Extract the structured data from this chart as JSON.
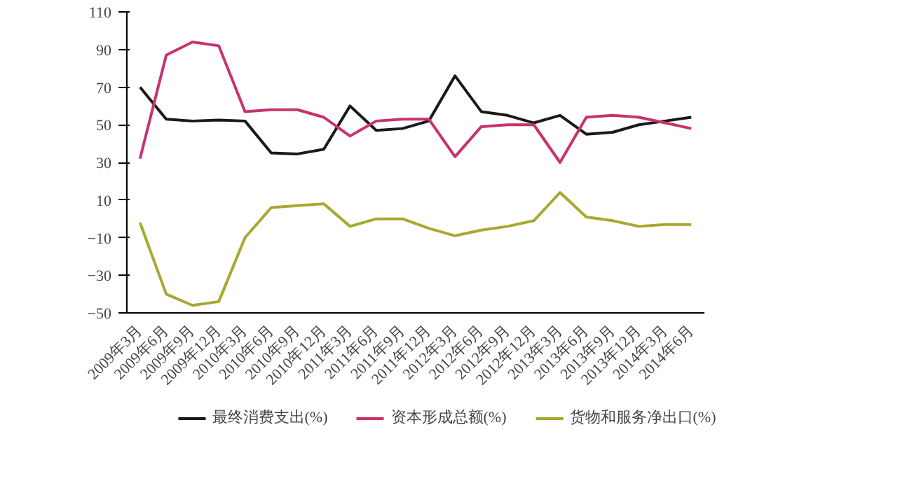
{
  "chart_data": {
    "type": "line",
    "categories": [
      "2009年3月",
      "2009年6月",
      "2009年9月",
      "2009年12月",
      "2010年3月",
      "2010年6月",
      "2010年9月",
      "2010年12月",
      "2011年3月",
      "2011年6月",
      "2011年9月",
      "2011年12月",
      "2012年3月",
      "2012年6月",
      "2012年9月",
      "2012年12月",
      "2013年3月",
      "2013年6月",
      "2013年9月",
      "2013年12月",
      "2014年3月",
      "2014年6月"
    ],
    "series": [
      {
        "name": "最终消费支出(%)",
        "color": "#1a1a1a",
        "values": [
          70,
          53,
          52,
          52.5,
          52,
          35,
          34.5,
          37,
          60,
          47,
          48,
          52,
          76,
          57,
          55,
          51,
          55,
          45,
          46,
          50,
          52,
          54
        ]
      },
      {
        "name": "资本形成总额(%)",
        "color": "#c8326e",
        "values": [
          32,
          87,
          94,
          92,
          57,
          58,
          58,
          54,
          44,
          52,
          53,
          53,
          33,
          49,
          50,
          50,
          30,
          54,
          55,
          54,
          51,
          48
        ]
      },
      {
        "name": "货物和服务净出口(%)",
        "color": "#a8a832",
        "values": [
          -2,
          -40,
          -46,
          -44,
          -10,
          6,
          7,
          8,
          -4,
          0,
          0,
          -5,
          -9,
          -6,
          -4,
          -1,
          14,
          1,
          -1,
          -4,
          -3,
          -3
        ]
      }
    ],
    "ylim": [
      -50,
      110
    ],
    "yticks": [
      -50,
      -30,
      -10,
      10,
      30,
      50,
      70,
      90,
      110
    ],
    "grid": false,
    "legend": "bottom",
    "marker": "none",
    "line_style": "solid"
  }
}
